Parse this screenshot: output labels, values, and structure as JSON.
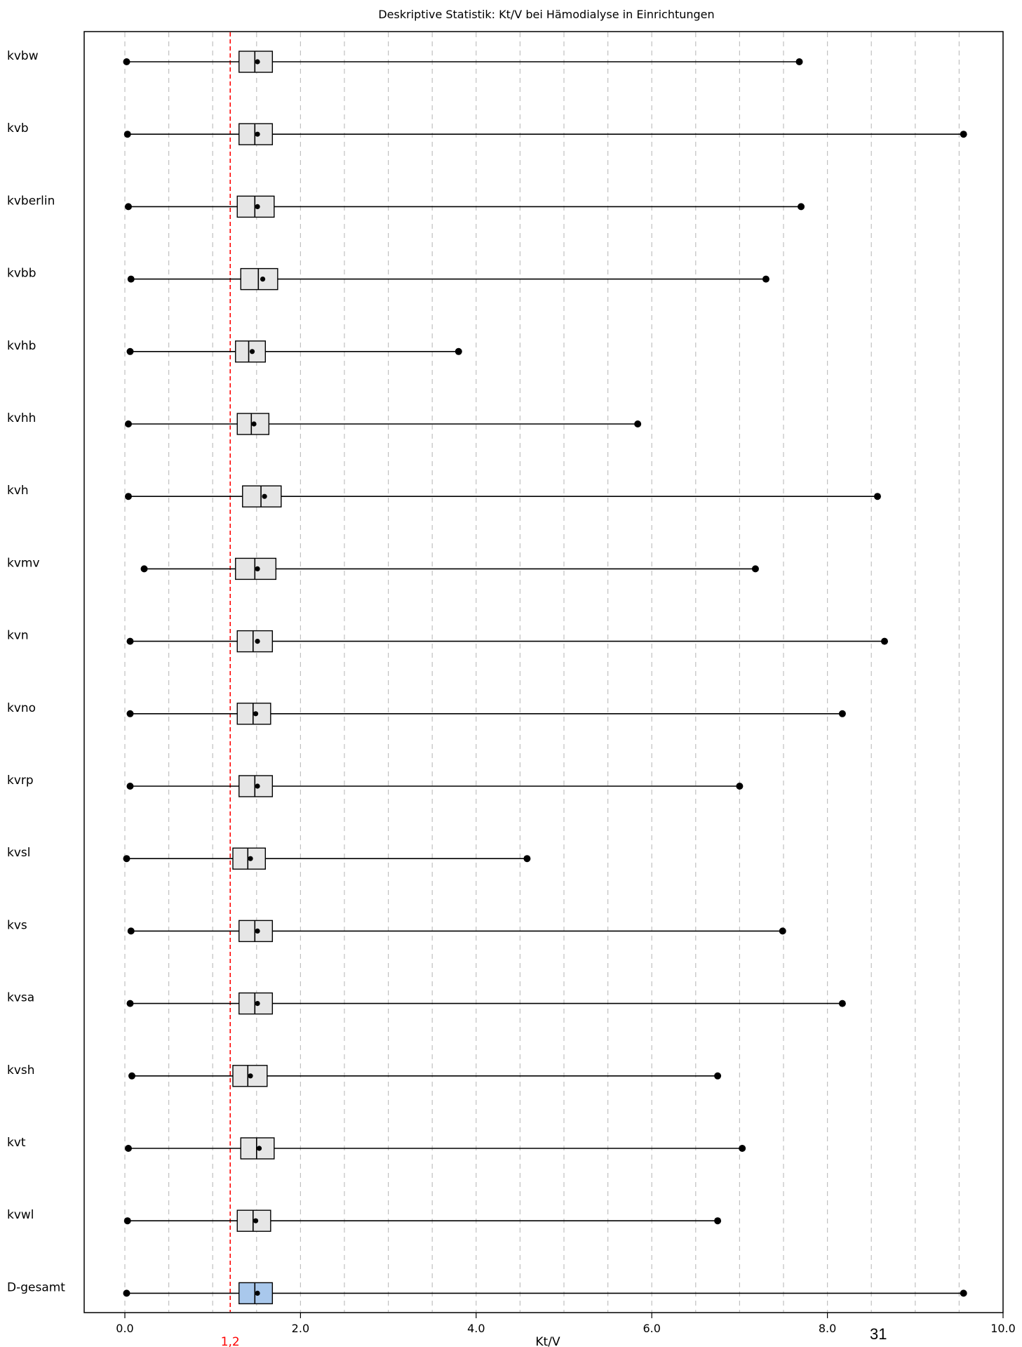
{
  "chart_data": {
    "type": "boxplot",
    "title": "Deskriptive Statistik: Kt/V bei Hämodialyse in Einrichtungen",
    "xlabel": "Kt/V",
    "xlim": [
      -0.45,
      10.0
    ],
    "xticks": [
      0,
      2,
      4,
      6,
      8,
      10
    ],
    "xtick_labels": [
      "0.0",
      "2.0",
      "4.0",
      "6.0",
      "8.0",
      "10.0"
    ],
    "grid": "vertical dashed every 0.5",
    "reference_line": {
      "value": 1.2,
      "label": "1,2",
      "color": "#ff0000"
    },
    "colors": {
      "box": "#e6e6e6",
      "highlight_box": "#a9c8ec",
      "axis": "#000000",
      "grid": "#c0c0c0"
    },
    "series": [
      {
        "label": "kvbw",
        "min": 0.02,
        "q1": 1.3,
        "median": 1.48,
        "q3": 1.68,
        "mean": 1.51,
        "max": 7.68
      },
      {
        "label": "kvb",
        "min": 0.03,
        "q1": 1.3,
        "median": 1.48,
        "q3": 1.68,
        "mean": 1.51,
        "max": 9.55
      },
      {
        "label": "kvberlin",
        "min": 0.04,
        "q1": 1.28,
        "median": 1.48,
        "q3": 1.7,
        "mean": 1.51,
        "max": 7.7
      },
      {
        "label": "kvbb",
        "min": 0.07,
        "q1": 1.32,
        "median": 1.52,
        "q3": 1.74,
        "mean": 1.57,
        "max": 7.3
      },
      {
        "label": "kvhb",
        "min": 0.06,
        "q1": 1.26,
        "median": 1.41,
        "q3": 1.6,
        "mean": 1.45,
        "max": 3.8
      },
      {
        "label": "kvhh",
        "min": 0.04,
        "q1": 1.28,
        "median": 1.44,
        "q3": 1.64,
        "mean": 1.47,
        "max": 5.84
      },
      {
        "label": "kvh",
        "min": 0.04,
        "q1": 1.34,
        "median": 1.55,
        "q3": 1.78,
        "mean": 1.59,
        "max": 8.57
      },
      {
        "label": "kvmv",
        "min": 0.22,
        "q1": 1.26,
        "median": 1.48,
        "q3": 1.72,
        "mean": 1.51,
        "max": 7.18
      },
      {
        "label": "kvn",
        "min": 0.06,
        "q1": 1.28,
        "median": 1.46,
        "q3": 1.68,
        "mean": 1.51,
        "max": 8.65
      },
      {
        "label": "kvno",
        "min": 0.06,
        "q1": 1.28,
        "median": 1.46,
        "q3": 1.66,
        "mean": 1.49,
        "max": 8.17
      },
      {
        "label": "kvrp",
        "min": 0.06,
        "q1": 1.3,
        "median": 1.48,
        "q3": 1.68,
        "mean": 1.51,
        "max": 7.0
      },
      {
        "label": "kvsl",
        "min": 0.02,
        "q1": 1.23,
        "median": 1.4,
        "q3": 1.6,
        "mean": 1.43,
        "max": 4.58
      },
      {
        "label": "kvs",
        "min": 0.07,
        "q1": 1.3,
        "median": 1.48,
        "q3": 1.68,
        "mean": 1.51,
        "max": 7.49
      },
      {
        "label": "kvsa",
        "min": 0.06,
        "q1": 1.3,
        "median": 1.48,
        "q3": 1.68,
        "mean": 1.51,
        "max": 8.17
      },
      {
        "label": "kvsh",
        "min": 0.08,
        "q1": 1.23,
        "median": 1.4,
        "q3": 1.62,
        "mean": 1.43,
        "max": 6.75
      },
      {
        "label": "kvt",
        "min": 0.04,
        "q1": 1.32,
        "median": 1.5,
        "q3": 1.7,
        "mean": 1.53,
        "max": 7.03
      },
      {
        "label": "kvwl",
        "min": 0.03,
        "q1": 1.28,
        "median": 1.46,
        "q3": 1.66,
        "mean": 1.49,
        "max": 6.75
      },
      {
        "label": "D-gesamt",
        "min": 0.02,
        "q1": 1.3,
        "median": 1.48,
        "q3": 1.68,
        "mean": 1.51,
        "max": 9.55,
        "highlight": true
      }
    ]
  },
  "page_number": "31"
}
